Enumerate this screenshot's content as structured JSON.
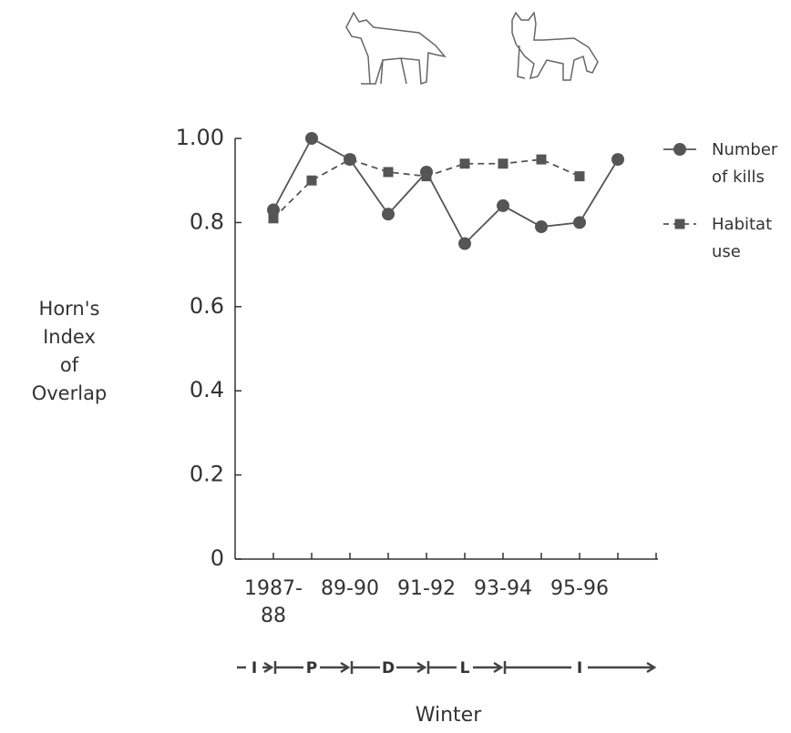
{
  "chart_data": {
    "type": "line",
    "y_label_lines": [
      "Horn's",
      "Index",
      "of",
      "Overlap"
    ],
    "x_label": "Winter",
    "categories": [
      "1987-88",
      null,
      "89-90",
      null,
      "91-92",
      null,
      "93-94",
      null,
      "95-96",
      null
    ],
    "series": [
      {
        "name": "Number of kills",
        "color": "#555555",
        "marker": "circle",
        "dash": false,
        "values": [
          0.83,
          1.0,
          0.95,
          0.82,
          0.92,
          0.75,
          0.84,
          0.79,
          0.8,
          0.95
        ]
      },
      {
        "name": "Habitat use",
        "color": "#555555",
        "marker": "square",
        "dash": true,
        "values": [
          0.81,
          0.9,
          0.95,
          0.92,
          0.91,
          0.94,
          0.94,
          0.95,
          0.91,
          null
        ]
      }
    ],
    "ylim": [
      0,
      1
    ],
    "yticks": [
      0,
      0.2,
      0.4,
      0.6,
      0.8,
      {
        "value": 1,
        "label": "1.00"
      }
    ],
    "periods": [
      "I",
      "P",
      "D",
      "L",
      "I"
    ]
  }
}
